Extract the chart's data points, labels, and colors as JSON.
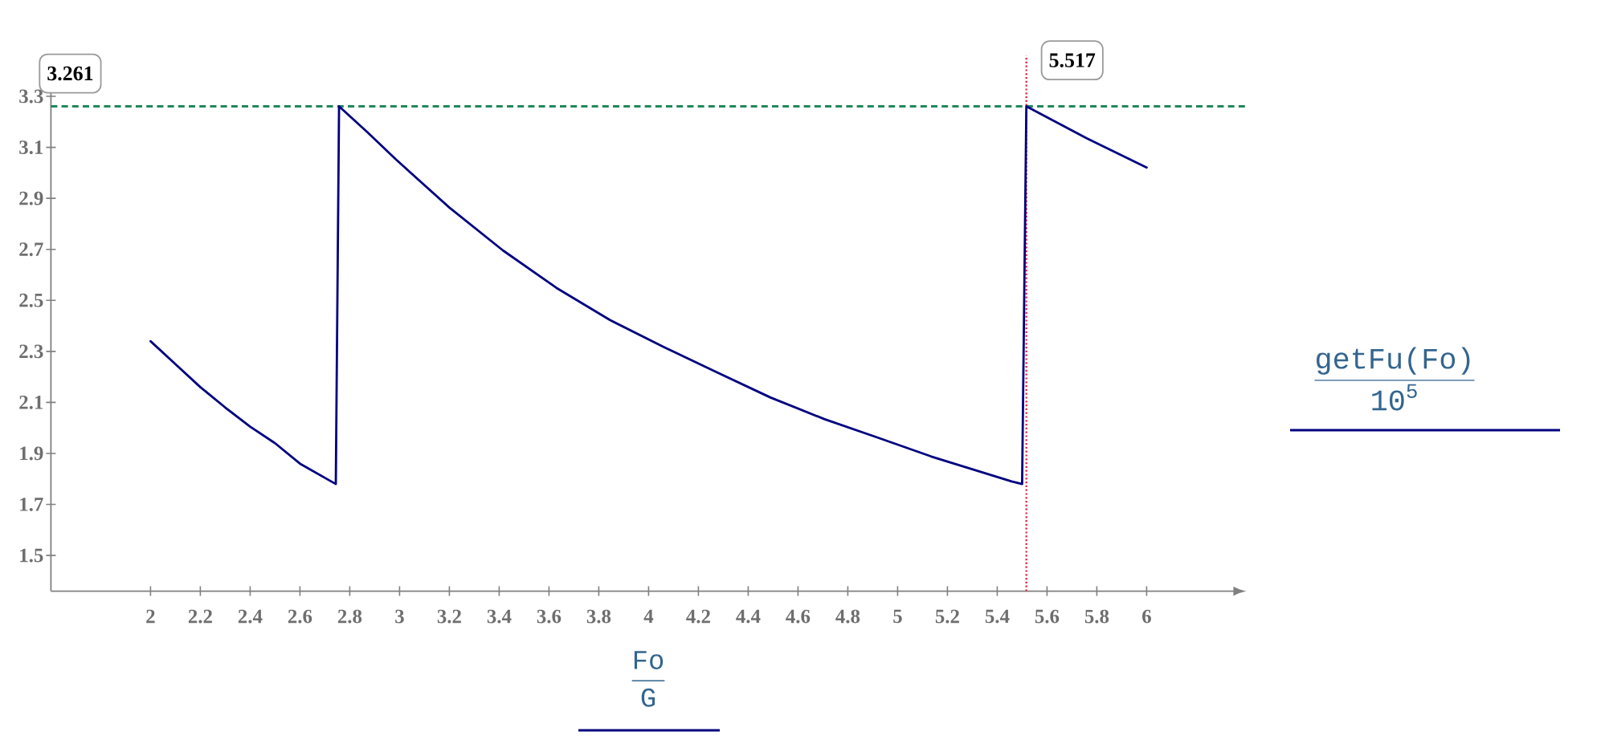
{
  "chart_data": {
    "type": "line",
    "xlabel": "\\frac{\\texttt{Fo}}{\\texttt{G}}",
    "ylabel": "\\frac{\\texttt{getFu(Fo)}}{\\texttt{10}^{\\texttt{5}}}",
    "x": [
      2.0,
      2.1,
      2.2,
      2.3,
      2.4,
      2.5,
      2.6,
      2.744,
      2.757,
      2.87,
      2.985,
      3.2,
      3.415,
      3.63,
      3.845,
      4.06,
      4.275,
      4.49,
      4.705,
      4.92,
      5.135,
      5.458,
      5.5,
      5.517,
      5.759,
      6.0
    ],
    "series": [
      {
        "color": "#000080",
        "values": [
          2.34,
          2.25,
          2.16,
          2.08,
          2.005,
          1.94,
          1.86,
          1.78,
          3.261,
          3.16,
          3.053,
          2.864,
          2.696,
          2.549,
          2.423,
          2.318,
          2.218,
          2.119,
          2.035,
          1.962,
          1.888,
          1.79,
          1.78,
          3.261,
          3.136,
          3.021
        ]
      }
    ],
    "xlim": [
      1.6,
      6.4
    ],
    "ylim": [
      1.36,
      3.46
    ],
    "xticks": [
      2,
      2.2,
      2.4,
      2.6,
      2.8,
      3,
      3.2,
      3.4,
      3.6,
      3.8,
      4,
      4.2,
      4.4,
      4.6,
      4.8,
      5,
      5.2,
      5.4,
      5.6,
      5.8,
      6
    ],
    "yticks": [
      1.5,
      1.7,
      1.9,
      2.1,
      2.3,
      2.5,
      2.7,
      2.9,
      3.1,
      3.3
    ],
    "ref_lines": [
      {
        "axis": "y",
        "value": 3.261,
        "label": "3.261",
        "color": "#22885a",
        "line_style": "dashed"
      },
      {
        "axis": "x",
        "value": 5.517,
        "label": "5.517",
        "color": "#e0304a",
        "line_style": "dotted"
      }
    ]
  }
}
